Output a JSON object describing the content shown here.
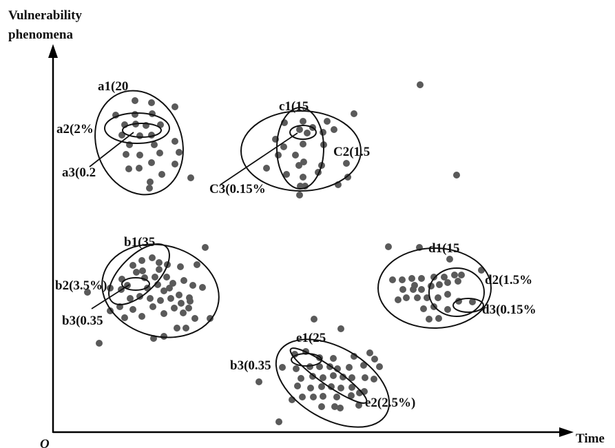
{
  "axes": {
    "y_label_line1": "Vulnerability",
    "y_label_line2": "phenomena",
    "x_label": "Time",
    "origin_label": "O"
  },
  "labels": {
    "a1": "a1(20",
    "a2": "a2(2%",
    "a3": "a3(0.2",
    "c1": "c1(15",
    "c2": "C2(1.5",
    "c3": "C3(0.15%",
    "b1": "b1(35",
    "b2": "b2(3.5%)",
    "b3": "b3(0.35",
    "d1": "d1(15",
    "d2": "d2(1.5%",
    "d3": "d3(0.15%",
    "e1": "e1(25",
    "e2": "e2(2.5%)",
    "e3": "b3(0.35"
  },
  "colors": {
    "dot": "#5a5a5a",
    "line": "#111111"
  }
}
